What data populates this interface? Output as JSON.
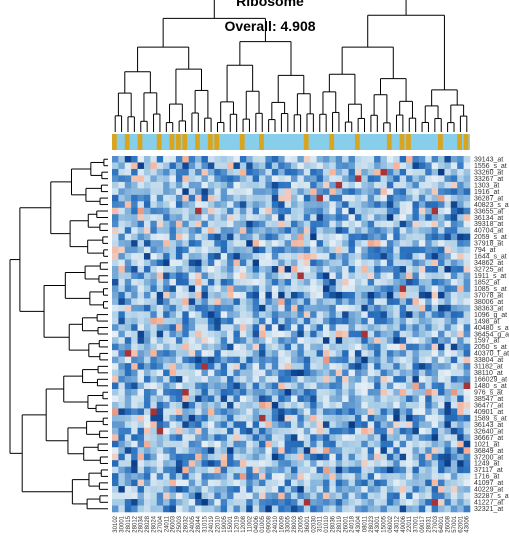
{
  "title_top": "Ribosome",
  "title_main": "Overall: 4.908",
  "colors": {
    "group_a": "#d9a41e",
    "group_b": "#87ceeb",
    "dendro": "#000000",
    "heat_low": "#0b3b85",
    "heat_mid_low": "#2c73c0",
    "heat_mid": "#a8cde6",
    "heat_neutral": "#e6eef5",
    "heat_high": "#f6b39a",
    "heat_extreme": "#8b0a14"
  },
  "chart_data": {
    "type": "heatmap",
    "title": "Overall: 4.908",
    "column_groups_pattern": "alternating orange/blue sample annotation bar",
    "row_labels": [
      "39143_at",
      "1556_s_at",
      "33260_at",
      "33267_at",
      "1303_at",
      "1916_at",
      "36287_at",
      "40823_s_at",
      "33655_at",
      "36134_at",
      "39318_at",
      "40704_at",
      "2059_s_at",
      "37918_at",
      "794_at",
      "1644_s_at",
      "34862_at",
      "32725_at",
      "1911_s_at",
      "1852_at",
      "1085_s_at",
      "37078_at",
      "38006_at",
      "38363_at",
      "1096_g_at",
      "1498_at",
      "40480_s_at",
      "36454_g_at",
      "1597_at",
      "2050_s_at",
      "40370_f_at",
      "33804_at",
      "31182_at",
      "38110_at",
      "166029_at",
      "1480_s_at",
      "976_s_at",
      "38547_at",
      "36477_at",
      "40901_at",
      "1589_s_at",
      "36143_at",
      "32640_at",
      "36667_at",
      "1021_at",
      "36849_at",
      "37200_at",
      "1249_at",
      "37117_at",
      "1716_at",
      "41097_at",
      "40229_at",
      "32287_s_at",
      "41227_at",
      "32321_at"
    ],
    "col_labels": [
      "30102",
      "30001",
      "28015",
      "28012",
      "28034",
      "28028",
      "28024",
      "27004",
      "24011",
      "26003",
      "25003",
      "28032",
      "24005",
      "28044",
      "31015",
      "24019",
      "22010",
      "19005",
      "15001",
      "12019",
      "12008",
      "11002",
      "04006",
      "01005",
      "09008",
      "24010",
      "16009",
      "33005",
      "28003",
      "20005",
      "36001",
      "02030",
      "31011",
      "01010",
      "28036",
      "28019",
      "26001",
      "24018",
      "43004",
      "08011",
      "28023",
      "43001",
      "15005",
      "06002",
      "43012",
      "49006",
      "22011",
      "37001",
      "09017",
      "28031",
      "27003",
      "64001",
      "26008",
      "57001",
      "62001",
      "43006"
    ]
  }
}
